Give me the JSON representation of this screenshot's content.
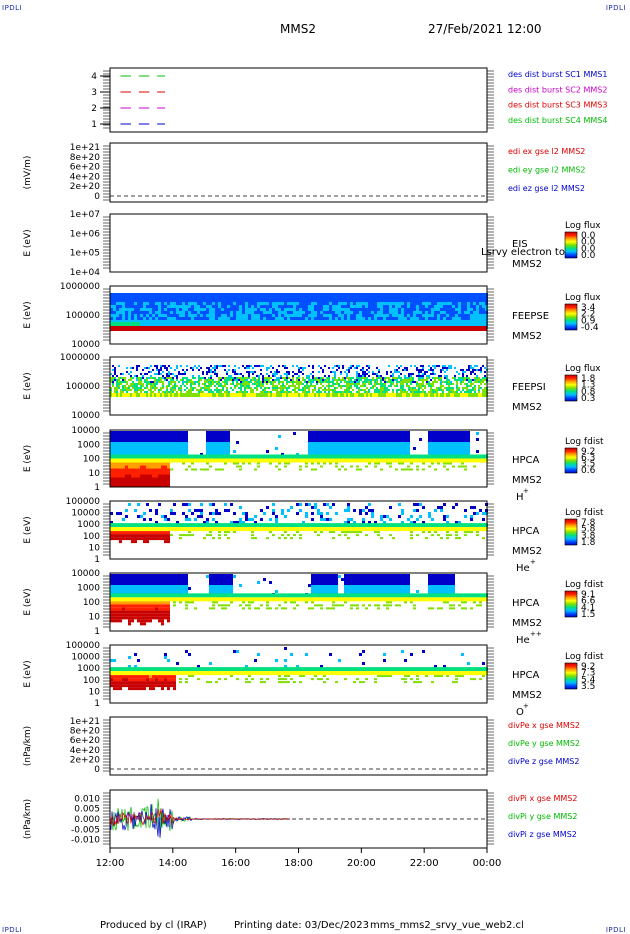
{
  "header": {
    "corner_left": "IPDLI",
    "corner_right": "IPDLI",
    "title": "MMS2",
    "date": "27/Feb/2021 12:00",
    "bottom_left": "IPDLI",
    "bottom_right": "IPDLI"
  },
  "footer": {
    "produced": "Produced by cl (IRAP)",
    "printing": "Printing date: 03/Dec/2023",
    "script": "mms_mms2_srvy_vue_web2.cl"
  },
  "colors": {
    "red": "#dd0000",
    "green": "#00bb00",
    "blue": "#0000cc",
    "magenta": "#cc00cc",
    "spectrogram_scale": [
      "#0000c8",
      "#0050ff",
      "#00c0ff",
      "#00e080",
      "#80e000",
      "#ffff00",
      "#ffa000",
      "#ff2000",
      "#c80000"
    ]
  },
  "chart_data": [
    {
      "type": "line",
      "name": "burst_availability",
      "yticks": [
        "4",
        "3",
        "2",
        "1"
      ],
      "legend": [
        {
          "label": "des dist burst SC1 MMS1",
          "color": "#0000cc"
        },
        {
          "label": "des dist burst SC2 MMS2",
          "color": "#cc00cc"
        },
        {
          "label": "des dist burst SC3 MMS3",
          "color": "#dd0000"
        },
        {
          "label": "des dist burst SC4 MMS4",
          "color": "#00bb00"
        }
      ],
      "series": [
        {
          "y": 4,
          "color": "#00bb00",
          "dashes": [
            [
              "12:20",
              "12:40"
            ],
            [
              "12:55",
              "13:15"
            ],
            [
              "13:30",
              "13:45"
            ]
          ]
        },
        {
          "y": 3,
          "color": "#dd0000",
          "dashes": [
            [
              "12:20",
              "12:40"
            ],
            [
              "12:55",
              "13:15"
            ],
            [
              "13:30",
              "13:45"
            ]
          ]
        },
        {
          "y": 2,
          "color": "#cc00cc",
          "dashes": [
            [
              "12:20",
              "12:40"
            ],
            [
              "12:55",
              "13:15"
            ],
            [
              "13:30",
              "13:45"
            ]
          ]
        },
        {
          "y": 1,
          "color": "#0000cc",
          "dashes": [
            [
              "12:20",
              "12:40"
            ],
            [
              "12:55",
              "13:15"
            ],
            [
              "13:30",
              "13:45"
            ]
          ]
        }
      ]
    },
    {
      "type": "line",
      "name": "edi_e_field",
      "ylabel": "(mV/m)",
      "yticks": [
        "1e+21",
        "8e+20",
        "6e+20",
        "4e+20",
        "2e+20",
        "0"
      ],
      "legend": [
        {
          "label": "edi ex gse l2 MMS2",
          "color": "#dd0000"
        },
        {
          "label": "edi ey gse l2 MMS2",
          "color": "#00bb00"
        },
        {
          "label": "edi ez gse l2 MMS2",
          "color": "#0000cc"
        }
      ],
      "zero_line": true
    },
    {
      "type": "heatmap",
      "name": "eis",
      "ylabel": "E (eV)",
      "yticks": [
        "1e+07",
        "1e+06",
        "1e+05",
        "1e+04"
      ],
      "instrument": "EIS",
      "spacecraft": "MMS2",
      "note": "Lsrvy electron to",
      "cbar_title": "Log flux",
      "cbar_ticks": [
        "0.0",
        "0.0",
        "0.0",
        "0.0"
      ]
    },
    {
      "type": "heatmap",
      "name": "feeps_electron",
      "ylabel": "E (eV)",
      "yticks": [
        "1000000",
        "100000",
        "10000"
      ],
      "instrument": "FEEPSE",
      "spacecraft": "MMS2",
      "cbar_title": "Log flux",
      "cbar_ticks": [
        "3.4",
        "2.2",
        "0.9",
        "-0.4"
      ]
    },
    {
      "type": "heatmap",
      "name": "feeps_ion",
      "ylabel": "E (eV)",
      "yticks": [
        "1000000",
        "100000",
        "10000"
      ],
      "instrument": "FEEPSI",
      "spacecraft": "MMS2",
      "cbar_title": "Log flux",
      "cbar_ticks": [
        "1.8",
        "1.3",
        "0.8",
        "0.3"
      ]
    },
    {
      "type": "heatmap",
      "name": "hpca_h",
      "ylabel": "E (eV)",
      "yticks": [
        "10000",
        "1000",
        "100",
        "10",
        "1"
      ],
      "instrument": "HPCA",
      "spacecraft": "MMS2",
      "species": "H",
      "charge": "+",
      "cbar_title": "Log fdist",
      "cbar_ticks": [
        "9.2",
        "6.3",
        "3.5",
        "0.6"
      ]
    },
    {
      "type": "heatmap",
      "name": "hpca_he",
      "ylabel": "E (eV)",
      "yticks": [
        "100000",
        "10000",
        "1000",
        "100",
        "10",
        "1"
      ],
      "instrument": "HPCA",
      "spacecraft": "MMS2",
      "species": "He",
      "charge": "+",
      "cbar_title": "Log fdist",
      "cbar_ticks": [
        "7.8",
        "5.8",
        "3.8",
        "1.8"
      ]
    },
    {
      "type": "heatmap",
      "name": "hpca_hepp",
      "ylabel": "E (eV)",
      "yticks": [
        "10000",
        "1000",
        "100",
        "10",
        "1"
      ],
      "instrument": "HPCA",
      "spacecraft": "MMS2",
      "species": "He",
      "charge": "++",
      "cbar_title": "Log fdist",
      "cbar_ticks": [
        "9.1",
        "6.6",
        "4.1",
        "1.5"
      ]
    },
    {
      "type": "heatmap",
      "name": "hpca_o",
      "ylabel": "E (eV)",
      "yticks": [
        "100000",
        "10000",
        "1000",
        "100",
        "10",
        "1"
      ],
      "instrument": "HPCA",
      "spacecraft": "MMS2",
      "species": "O",
      "charge": "+",
      "cbar_title": "Log fdist",
      "cbar_ticks": [
        "9.2",
        "7.3",
        "5.4",
        "3.5"
      ]
    },
    {
      "type": "line",
      "name": "div_pe",
      "ylabel": "(nPa/km)",
      "yticks": [
        "1e+21",
        "8e+20",
        "6e+20",
        "4e+20",
        "2e+20",
        "0"
      ],
      "legend": [
        {
          "label": "divPe x gse MMS2",
          "color": "#dd0000"
        },
        {
          "label": "divPe y gse MMS2",
          "color": "#00bb00"
        },
        {
          "label": "divPe z gse MMS2",
          "color": "#0000cc"
        }
      ],
      "zero_line": true
    },
    {
      "type": "line",
      "name": "div_pi",
      "ylabel": "(nPa/km)",
      "yticks": [
        "0.010",
        "0.005",
        "0.000",
        "-0.005",
        "-0.010"
      ],
      "ylim": [
        -0.014,
        0.014
      ],
      "legend": [
        {
          "label": "divPi x gse MMS2",
          "color": "#dd0000"
        },
        {
          "label": "divPi y gse MMS2",
          "color": "#00bb00"
        },
        {
          "label": "divPi z gse MMS2",
          "color": "#0000cc"
        }
      ],
      "zero_line": true,
      "activity_end": "17:45"
    }
  ],
  "xaxis": {
    "ticks": [
      "12:00",
      "14:00",
      "16:00",
      "18:00",
      "20:00",
      "22:00",
      "00:00"
    ]
  }
}
